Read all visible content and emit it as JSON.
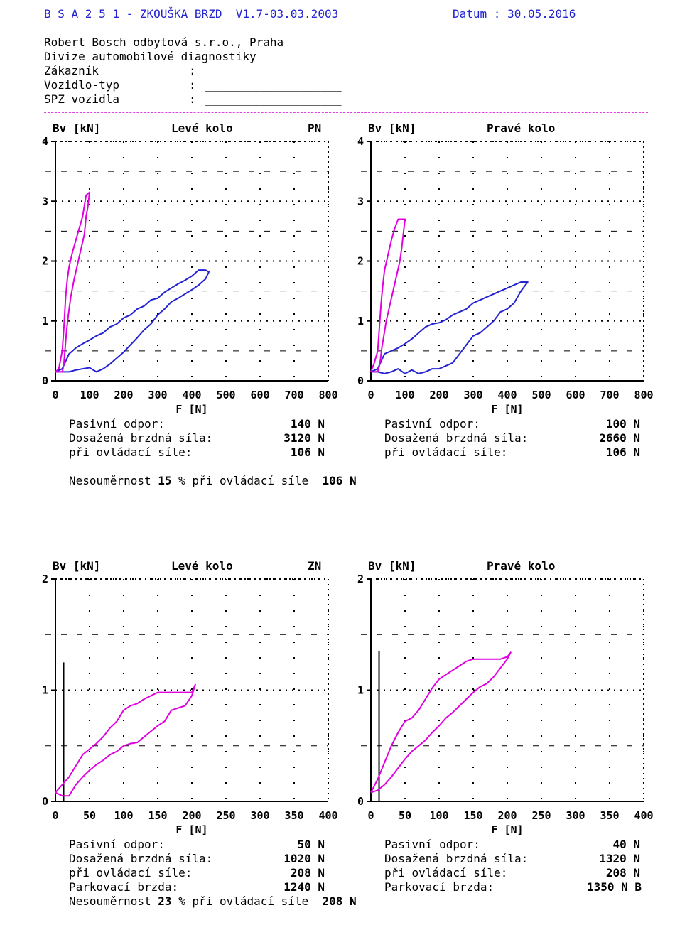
{
  "header": {
    "program": "B S A 2 5 1 - ZKOUŠKA BRZD  V1.7-03.03.2003",
    "date": "Datum : 30.05.2016",
    "company": "Robert Bosch odbytová s.r.o., Praha",
    "division": "Divize automobilové diagnostiky",
    "fields": [
      {
        "label": "Zákazník",
        "sep": ":",
        "value": "____________________"
      },
      {
        "label": "Vozidlo-typ",
        "sep": ":",
        "value": "____________________"
      },
      {
        "label": "SPZ vozidla",
        "sep": ":",
        "value": "____________________"
      }
    ]
  },
  "colors": {
    "blue_series": "#2323d2",
    "magenta_series": "#e000e0",
    "rule": "#e040e0",
    "axis": "#000000"
  },
  "front": {
    "axle": "PN",
    "left_title": "Levé kolo",
    "right_title": "Pravé kolo",
    "nesoumernost": {
      "prefix": "Nesouměrnost",
      "value": "15",
      "mid": "% při ovládací síle",
      "force": "106 N"
    },
    "left_results": [
      {
        "label": "Pasivní odpor:",
        "value": "140 N"
      },
      {
        "label": "Dosažená brzdná síla:",
        "value": "3120 N"
      },
      {
        "label": "při ovládací síle:",
        "value": "106 N"
      }
    ],
    "right_results": [
      {
        "label": "Pasivní odpor:",
        "value": "100 N"
      },
      {
        "label": "Dosažená brzdná síla:",
        "value": "2660 N"
      },
      {
        "label": "při ovládací síle:",
        "value": "106 N"
      }
    ]
  },
  "rear": {
    "axle": "ZN",
    "left_title": "Levé kolo",
    "right_title": "Pravé kolo",
    "nesoumernost": {
      "prefix": "Nesouměrnost",
      "value": "23",
      "mid": "% při ovládací síle",
      "force": "208 N"
    },
    "left_results": [
      {
        "label": "Pasivní odpor:",
        "value": "50 N"
      },
      {
        "label": "Dosažená brzdná síla:",
        "value": "1020 N"
      },
      {
        "label": "při ovládací síle:",
        "value": "208 N"
      },
      {
        "label": "Parkovací brzda:",
        "value": "1240 N"
      }
    ],
    "right_results": [
      {
        "label": "Pasivní odpor:",
        "value": "40 N"
      },
      {
        "label": "Dosažená brzdná síla:",
        "value": "1320 N"
      },
      {
        "label": "při ovládací síle:",
        "value": "208 N"
      },
      {
        "label": "Parkovací brzda:",
        "value": "1350 N B"
      }
    ]
  },
  "chart_data": [
    {
      "type": "line",
      "title": "Levé kolo",
      "axle": "PN",
      "ylabel": "Bv [kN]",
      "xlabel": "F [N]",
      "xlim": [
        0,
        800
      ],
      "ylim": [
        0,
        4
      ],
      "xticks": [
        0,
        100,
        200,
        300,
        400,
        500,
        600,
        700,
        800
      ],
      "yticks": [
        0,
        1,
        2,
        3,
        4
      ],
      "grid": true,
      "series": [
        {
          "color": "#2323d2",
          "x": [
            0,
            20,
            40,
            60,
            80,
            100,
            120,
            140,
            160,
            180,
            200,
            220,
            240,
            260,
            280,
            300,
            320,
            340,
            360,
            380,
            400,
            420,
            440,
            450,
            440,
            420,
            400,
            380,
            360,
            340,
            320,
            300,
            280,
            260,
            240,
            220,
            200,
            180,
            160,
            140,
            120,
            100,
            80,
            60,
            40,
            20,
            0
          ],
          "y": [
            0.15,
            0.2,
            0.45,
            0.55,
            0.62,
            0.68,
            0.75,
            0.8,
            0.9,
            0.95,
            1.05,
            1.1,
            1.2,
            1.25,
            1.35,
            1.38,
            1.48,
            1.55,
            1.62,
            1.68,
            1.75,
            1.85,
            1.85,
            1.82,
            1.7,
            1.6,
            1.52,
            1.45,
            1.38,
            1.32,
            1.2,
            1.1,
            0.95,
            0.85,
            0.72,
            0.6,
            0.48,
            0.38,
            0.28,
            0.2,
            0.15,
            0.22,
            0.2,
            0.18,
            0.15,
            0.15,
            0.15
          ]
        },
        {
          "color": "#e000e0",
          "x": [
            0,
            10,
            20,
            25,
            30,
            35,
            40,
            50,
            60,
            70,
            80,
            90,
            100,
            100,
            95,
            90,
            85,
            75,
            65,
            55,
            45,
            38,
            32,
            28,
            25,
            22,
            20,
            15,
            10,
            5,
            0
          ],
          "y": [
            0.15,
            0.2,
            0.5,
            0.9,
            1.4,
            1.7,
            1.9,
            2.15,
            2.35,
            2.55,
            2.75,
            3.1,
            3.15,
            3.15,
            2.9,
            2.75,
            2.45,
            2.2,
            1.95,
            1.7,
            1.4,
            1.1,
            0.8,
            0.5,
            0.3,
            0.2,
            0.15,
            0.15,
            0.15,
            0.15,
            0.15
          ]
        }
      ]
    },
    {
      "type": "line",
      "title": "Pravé kolo",
      "ylabel": "Bv [kN]",
      "xlabel": "F [N]",
      "xlim": [
        0,
        800
      ],
      "ylim": [
        0,
        4
      ],
      "xticks": [
        0,
        100,
        200,
        300,
        400,
        500,
        600,
        700,
        800
      ],
      "yticks": [
        0,
        1,
        2,
        3,
        4
      ],
      "grid": true,
      "series": [
        {
          "color": "#2323d2",
          "x": [
            0,
            20,
            40,
            60,
            80,
            100,
            120,
            140,
            160,
            180,
            200,
            220,
            240,
            260,
            280,
            300,
            320,
            340,
            360,
            380,
            400,
            420,
            440,
            460,
            440,
            420,
            400,
            380,
            360,
            340,
            320,
            300,
            280,
            260,
            240,
            220,
            200,
            180,
            160,
            140,
            120,
            100,
            80,
            60,
            40,
            20,
            0
          ],
          "y": [
            0.15,
            0.2,
            0.45,
            0.5,
            0.55,
            0.62,
            0.7,
            0.8,
            0.9,
            0.95,
            0.97,
            1.02,
            1.1,
            1.15,
            1.2,
            1.3,
            1.35,
            1.4,
            1.45,
            1.5,
            1.55,
            1.6,
            1.65,
            1.65,
            1.5,
            1.3,
            1.2,
            1.15,
            1.0,
            0.9,
            0.8,
            0.75,
            0.6,
            0.45,
            0.3,
            0.25,
            0.2,
            0.2,
            0.15,
            0.12,
            0.18,
            0.12,
            0.2,
            0.15,
            0.12,
            0.15,
            0.15
          ]
        },
        {
          "color": "#e000e0",
          "x": [
            0,
            10,
            20,
            25,
            30,
            35,
            40,
            50,
            60,
            70,
            80,
            90,
            100,
            95,
            90,
            85,
            75,
            65,
            55,
            45,
            38,
            32,
            28,
            25,
            22,
            20,
            15,
            10,
            5,
            0
          ],
          "y": [
            0.15,
            0.3,
            0.5,
            0.9,
            1.3,
            1.6,
            1.85,
            2.1,
            2.35,
            2.55,
            2.7,
            2.7,
            2.7,
            2.45,
            2.2,
            2.0,
            1.75,
            1.5,
            1.25,
            1.0,
            0.75,
            0.55,
            0.35,
            0.25,
            0.2,
            0.15,
            0.15,
            0.15,
            0.15,
            0.15
          ]
        }
      ]
    },
    {
      "type": "line",
      "title": "Levé kolo",
      "axle": "ZN",
      "ylabel": "Bv [kN]",
      "xlabel": "F [N]",
      "xlim": [
        0,
        400
      ],
      "ylim": [
        0,
        2
      ],
      "xticks": [
        0,
        50,
        100,
        150,
        200,
        250,
        300,
        350,
        400
      ],
      "yticks": [
        0,
        1,
        2
      ],
      "grid": true,
      "vline": {
        "x": 12,
        "y": [
          0,
          1.25
        ],
        "color": "#000000"
      },
      "series": [
        {
          "color": "#e000e0",
          "x": [
            0,
            10,
            20,
            30,
            40,
            50,
            60,
            70,
            80,
            90,
            100,
            110,
            120,
            130,
            140,
            150,
            160,
            170,
            180,
            190,
            200,
            205,
            200,
            190,
            180,
            170,
            160,
            150,
            140,
            130,
            120,
            110,
            100,
            90,
            80,
            70,
            60,
            50,
            40,
            30,
            20,
            10,
            0
          ],
          "y": [
            0.08,
            0.15,
            0.22,
            0.32,
            0.42,
            0.47,
            0.52,
            0.58,
            0.66,
            0.72,
            0.82,
            0.86,
            0.88,
            0.92,
            0.95,
            0.98,
            0.98,
            0.98,
            0.98,
            0.98,
            0.98,
            1.05,
            0.95,
            0.86,
            0.84,
            0.82,
            0.72,
            0.68,
            0.63,
            0.58,
            0.53,
            0.52,
            0.5,
            0.45,
            0.42,
            0.37,
            0.33,
            0.28,
            0.22,
            0.15,
            0.05,
            0.05,
            0.08
          ]
        }
      ]
    },
    {
      "type": "line",
      "title": "Pravé kolo",
      "ylabel": "Bv [kN]",
      "xlabel": "F [N]",
      "xlim": [
        0,
        400
      ],
      "ylim": [
        0,
        2
      ],
      "xticks": [
        0,
        50,
        100,
        150,
        200,
        250,
        300,
        350,
        400
      ],
      "yticks": [
        0,
        1,
        2
      ],
      "grid": true,
      "vline": {
        "x": 12,
        "y": [
          0,
          1.35
        ],
        "color": "#000000"
      },
      "series": [
        {
          "color": "#e000e0",
          "x": [
            0,
            10,
            20,
            30,
            40,
            50,
            60,
            70,
            80,
            90,
            100,
            110,
            120,
            130,
            140,
            150,
            160,
            170,
            180,
            190,
            200,
            205,
            200,
            190,
            180,
            170,
            160,
            150,
            140,
            130,
            120,
            110,
            100,
            90,
            80,
            70,
            60,
            50,
            40,
            30,
            20,
            10,
            0
          ],
          "y": [
            0.08,
            0.2,
            0.35,
            0.5,
            0.62,
            0.72,
            0.75,
            0.82,
            0.92,
            1.02,
            1.1,
            1.14,
            1.18,
            1.22,
            1.26,
            1.28,
            1.28,
            1.28,
            1.28,
            1.28,
            1.3,
            1.34,
            1.28,
            1.2,
            1.12,
            1.06,
            1.03,
            0.98,
            0.92,
            0.86,
            0.8,
            0.75,
            0.68,
            0.62,
            0.55,
            0.5,
            0.45,
            0.38,
            0.3,
            0.22,
            0.15,
            0.1,
            0.08
          ]
        }
      ]
    }
  ]
}
